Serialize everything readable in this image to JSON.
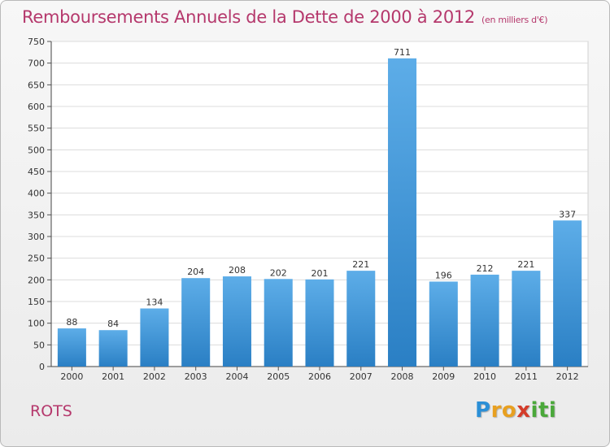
{
  "title": "Remboursements Annuels de la Dette de 2000 à 2012",
  "subtitle": "(en milliers d'€)",
  "commune": "ROTS",
  "logo": {
    "letters": [
      {
        "char": "P",
        "color": "#2b8fd6"
      },
      {
        "char": "r",
        "color": "#e8a020"
      },
      {
        "char": "o",
        "color": "#e8a020"
      },
      {
        "char": "x",
        "color": "#d43c2a"
      },
      {
        "char": "i",
        "color": "#4aa83a"
      },
      {
        "char": "t",
        "color": "#4aa83a"
      },
      {
        "char": "i",
        "color": "#4aa83a"
      }
    ]
  },
  "chart_data": {
    "type": "bar",
    "categories": [
      "2000",
      "2001",
      "2002",
      "2003",
      "2004",
      "2005",
      "2006",
      "2007",
      "2008",
      "2009",
      "2010",
      "2011",
      "2012"
    ],
    "values": [
      88,
      84,
      134,
      204,
      208,
      202,
      201,
      221,
      711,
      196,
      212,
      221,
      337
    ],
    "ylim": [
      0,
      750
    ],
    "yticks": [
      0,
      50,
      100,
      150,
      200,
      250,
      300,
      350,
      400,
      450,
      500,
      550,
      600,
      650,
      700,
      750
    ],
    "grid": true,
    "bar_color_top": "#5dade8",
    "bar_color_bottom": "#2a7fc4",
    "title": "Remboursements Annuels de la Dette de 2000 à 2012",
    "xlabel": "",
    "ylabel": ""
  }
}
